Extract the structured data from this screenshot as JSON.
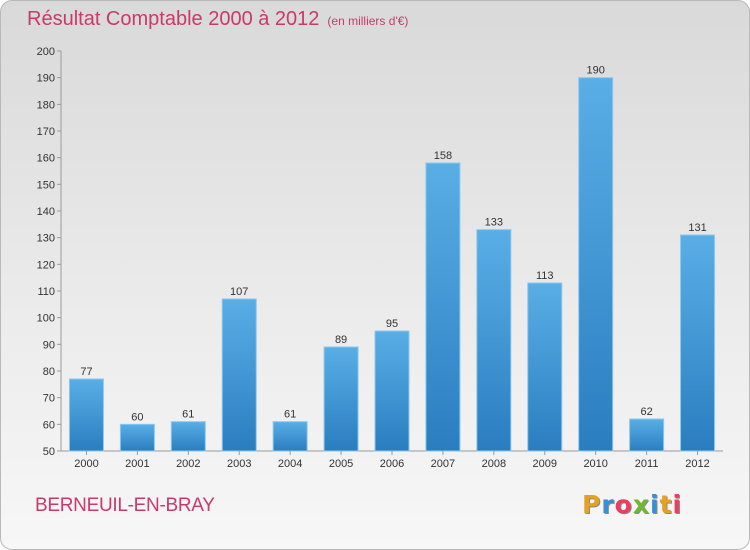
{
  "page": {
    "title": "Résultat Comptable 2000 à 2012",
    "subtitle": "(en milliers d'€)",
    "commune": "BERNEUIL-EN-BRAY",
    "logo_letters": [
      "P",
      "r",
      "o",
      "x",
      "i",
      "t",
      "i"
    ],
    "logo_colors": [
      "#e8a020",
      "#3a8fd0",
      "#e84060",
      "#70b830",
      "#3a8fd0",
      "#e8a020",
      "#e84060"
    ]
  },
  "chart_data": {
    "type": "bar",
    "title": "Résultat Comptable 2000 à 2012",
    "subtitle": "(en milliers d'€)",
    "categories": [
      "2000",
      "2001",
      "2002",
      "2003",
      "2004",
      "2005",
      "2006",
      "2007",
      "2008",
      "2009",
      "2010",
      "2011",
      "2012"
    ],
    "values": [
      77,
      60,
      61,
      107,
      61,
      89,
      95,
      158,
      133,
      113,
      190,
      62,
      131
    ],
    "ylim": [
      50,
      200
    ],
    "yticks": [
      50,
      60,
      70,
      80,
      90,
      100,
      110,
      120,
      130,
      140,
      150,
      160,
      170,
      180,
      190,
      200
    ],
    "grid": false,
    "bar_color_top": "#5aaee6",
    "bar_color_bottom": "#2a7ec0",
    "text_color": "#c83a6a"
  }
}
